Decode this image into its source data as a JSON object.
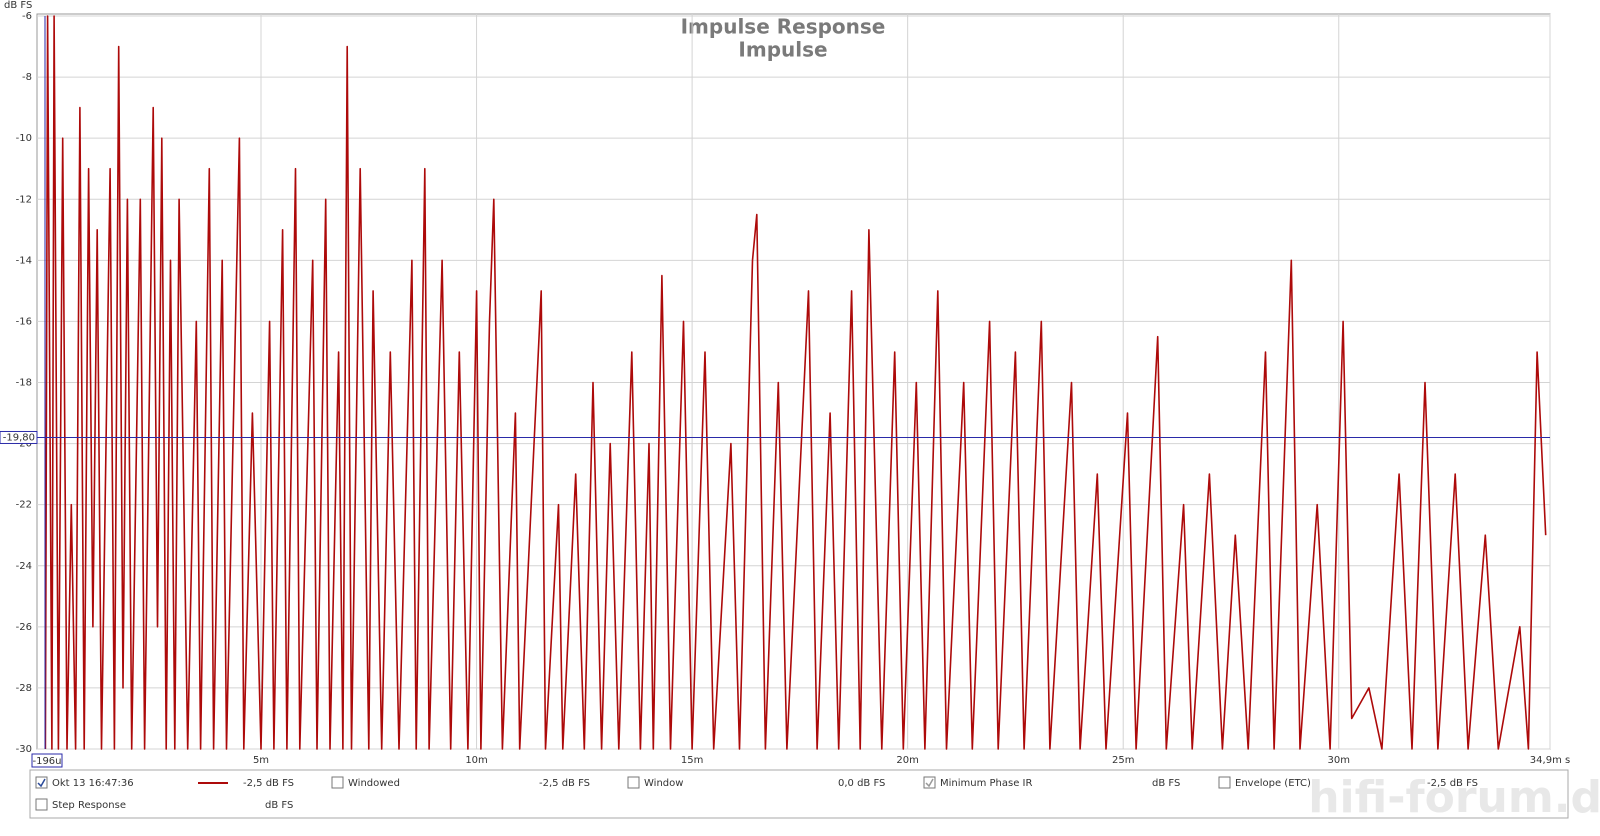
{
  "chart_data": {
    "type": "line",
    "title": "Impulse Response",
    "subtitle": "Impulse",
    "y_label": "dB FS",
    "watermark": "hifi-forum.de",
    "xlim": [
      -0.196,
      34.9
    ],
    "xticks": [
      {
        "value": 5,
        "label": "5m"
      },
      {
        "value": 10,
        "label": "10m"
      },
      {
        "value": 15,
        "label": "15m"
      },
      {
        "value": 20,
        "label": "20m"
      },
      {
        "value": 25,
        "label": "25m"
      },
      {
        "value": 30,
        "label": "30m"
      },
      {
        "value": 34.9,
        "label": "34,9m s"
      }
    ],
    "ylim": [
      -30,
      -6
    ],
    "yticks": [
      -6,
      -8,
      -10,
      -12,
      -14,
      -16,
      -18,
      -20,
      -22,
      -24,
      -26,
      -28,
      -30
    ],
    "grid": true,
    "cursor": {
      "x": {
        "value": -0.196,
        "label": "-196u"
      },
      "y": {
        "value": -19.8,
        "label": "-19,80"
      },
      "color": "#2a2aa8"
    },
    "series": [
      {
        "name": "Okt 13 16:47:36",
        "color": "#ad0a0a",
        "x": [
          0.0,
          0.05,
          0.15,
          0.2,
          0.3,
          0.4,
          0.5,
          0.6,
          0.7,
          0.8,
          0.9,
          1.0,
          1.1,
          1.2,
          1.3,
          1.5,
          1.6,
          1.7,
          1.8,
          1.9,
          2.0,
          2.2,
          2.3,
          2.5,
          2.6,
          2.7,
          2.8,
          2.9,
          3.0,
          3.1,
          3.3,
          3.5,
          3.6,
          3.8,
          3.9,
          4.1,
          4.2,
          4.5,
          4.6,
          4.8,
          5.0,
          5.2,
          5.3,
          5.5,
          5.6,
          5.8,
          5.9,
          6.2,
          6.3,
          6.5,
          6.6,
          6.8,
          6.9,
          7.0,
          7.1,
          7.3,
          7.5,
          7.6,
          7.8,
          8.0,
          8.2,
          8.5,
          8.6,
          8.8,
          8.9,
          9.2,
          9.4,
          9.6,
          9.8,
          10.0,
          10.1,
          10.3,
          10.4,
          10.6,
          10.9,
          11.0,
          11.5,
          11.6,
          11.9,
          12.0,
          12.3,
          12.5,
          12.7,
          12.9,
          13.1,
          13.3,
          13.6,
          13.8,
          14.0,
          14.1,
          14.3,
          14.5,
          14.8,
          15.0,
          15.3,
          15.5,
          15.9,
          16.1,
          16.4,
          16.5,
          16.7,
          17.0,
          17.2,
          17.7,
          17.9,
          18.2,
          18.4,
          18.7,
          18.9,
          19.1,
          19.4,
          19.7,
          19.9,
          20.2,
          20.4,
          20.7,
          20.9,
          21.3,
          21.5,
          21.9,
          22.1,
          22.5,
          22.7,
          23.1,
          23.3,
          23.8,
          24.0,
          24.4,
          24.6,
          25.1,
          25.3,
          25.8,
          26.0,
          26.4,
          26.6,
          27.0,
          27.3,
          27.6,
          27.9,
          28.3,
          28.5,
          28.9,
          29.1,
          29.5,
          29.8,
          30.1,
          30.3,
          30.7,
          31.0,
          31.4,
          31.7,
          32.0,
          32.3,
          32.7,
          33.0,
          33.4,
          33.7,
          34.2,
          34.4,
          34.6,
          34.8
        ],
        "values": [
          -30,
          -6,
          -30,
          -6,
          -30,
          -10,
          -30,
          -22,
          -30,
          -9,
          -30,
          -11,
          -26,
          -13,
          -30,
          -11,
          -30,
          -7,
          -28,
          -12,
          -30,
          -12,
          -30,
          -9,
          -26,
          -10,
          -30,
          -14,
          -30,
          -12,
          -30,
          -16,
          -30,
          -11,
          -30,
          -14,
          -30,
          -10,
          -30,
          -19,
          -30,
          -16,
          -30,
          -13,
          -30,
          -11,
          -30,
          -14,
          -30,
          -12,
          -30,
          -17,
          -30,
          -7,
          -30,
          -11,
          -30,
          -15,
          -30,
          -17,
          -30,
          -14,
          -30,
          -11,
          -30,
          -14,
          -30,
          -17,
          -30,
          -15,
          -30,
          -16,
          -12,
          -30,
          -19,
          -30,
          -15,
          -30,
          -22,
          -30,
          -21,
          -30,
          -18,
          -30,
          -20,
          -30,
          -17,
          -30,
          -20,
          -30,
          -14.5,
          -30,
          -16,
          -30,
          -17,
          -30,
          -20,
          -30,
          -14,
          -12.5,
          -30,
          -18,
          -30,
          -15,
          -30,
          -19,
          -30,
          -15,
          -30,
          -13,
          -30,
          -17,
          -30,
          -18,
          -30,
          -15,
          -30,
          -18,
          -30,
          -16,
          -30,
          -17,
          -30,
          -16,
          -30,
          -18,
          -30,
          -21,
          -30,
          -19,
          -30,
          -16.5,
          -30,
          -22,
          -30,
          -21,
          -30,
          -23,
          -30,
          -17,
          -30,
          -14,
          -30,
          -22,
          -30,
          -16,
          -29,
          -28,
          -30,
          -21,
          -30,
          -18,
          -30,
          -21,
          -30,
          -23,
          -30,
          -26,
          -30,
          -17,
          -23
        ]
      }
    ],
    "legend": [
      {
        "label": "Okt 13 16:47:36",
        "value": "-2,5 dB FS",
        "checked": true,
        "color": "#8a0a0a"
      },
      {
        "label": "Windowed",
        "value": "-2,5 dB FS",
        "checked": false,
        "color": "#b01010"
      },
      {
        "label": "Window",
        "value": "0,0 dB FS",
        "checked": false,
        "color": "#1a1a9a"
      },
      {
        "label": "Minimum Phase IR",
        "value": "dB FS",
        "checked": true,
        "color": "#888888"
      },
      {
        "label": "Envelope (ETC)",
        "value": "-2,5 dB FS",
        "checked": false,
        "color": "#8a0a0a"
      },
      {
        "label": "Step Response",
        "value": "dB FS",
        "checked": false,
        "color": "#8a0a0a"
      }
    ]
  }
}
